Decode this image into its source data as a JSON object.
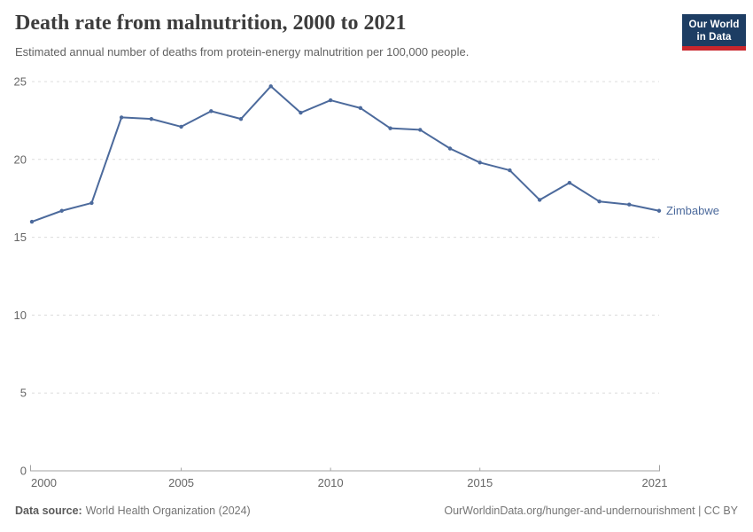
{
  "chart_data": {
    "type": "line",
    "title": "Death rate from malnutrition, 2000 to 2021",
    "subtitle": "Estimated annual number of deaths from protein-energy malnutrition per 100,000 people.",
    "x": [
      2000,
      2001,
      2002,
      2003,
      2004,
      2005,
      2006,
      2007,
      2008,
      2009,
      2010,
      2011,
      2012,
      2013,
      2014,
      2015,
      2016,
      2017,
      2018,
      2019,
      2020,
      2021
    ],
    "series": [
      {
        "name": "Zimbabwe",
        "color": "#4C6A9C",
        "values": [
          16.0,
          16.7,
          17.2,
          22.7,
          22.6,
          22.1,
          23.1,
          22.6,
          24.7,
          23.0,
          23.8,
          23.3,
          22.0,
          21.9,
          20.7,
          19.8,
          19.3,
          17.4,
          18.5,
          17.3,
          17.1,
          16.7
        ]
      }
    ],
    "xlabel": "",
    "ylabel": "",
    "ylim": [
      0,
      25
    ],
    "yticks": [
      0,
      5,
      10,
      15,
      20,
      25
    ],
    "xticks": [
      2000,
      2005,
      2010,
      2015,
      2021
    ],
    "grid": "horizontal-dashed",
    "legend_position": "end-of-line-label"
  },
  "logo": {
    "line1": "Our World",
    "line2": "in Data",
    "bg_color": "#1D3D63",
    "accent_color": "#C9262C"
  },
  "footer": {
    "source_label": "Data source:",
    "source_value": "World Health Organization (2024)",
    "credit": "OurWorldinData.org/hunger-and-undernourishment | CC BY"
  }
}
